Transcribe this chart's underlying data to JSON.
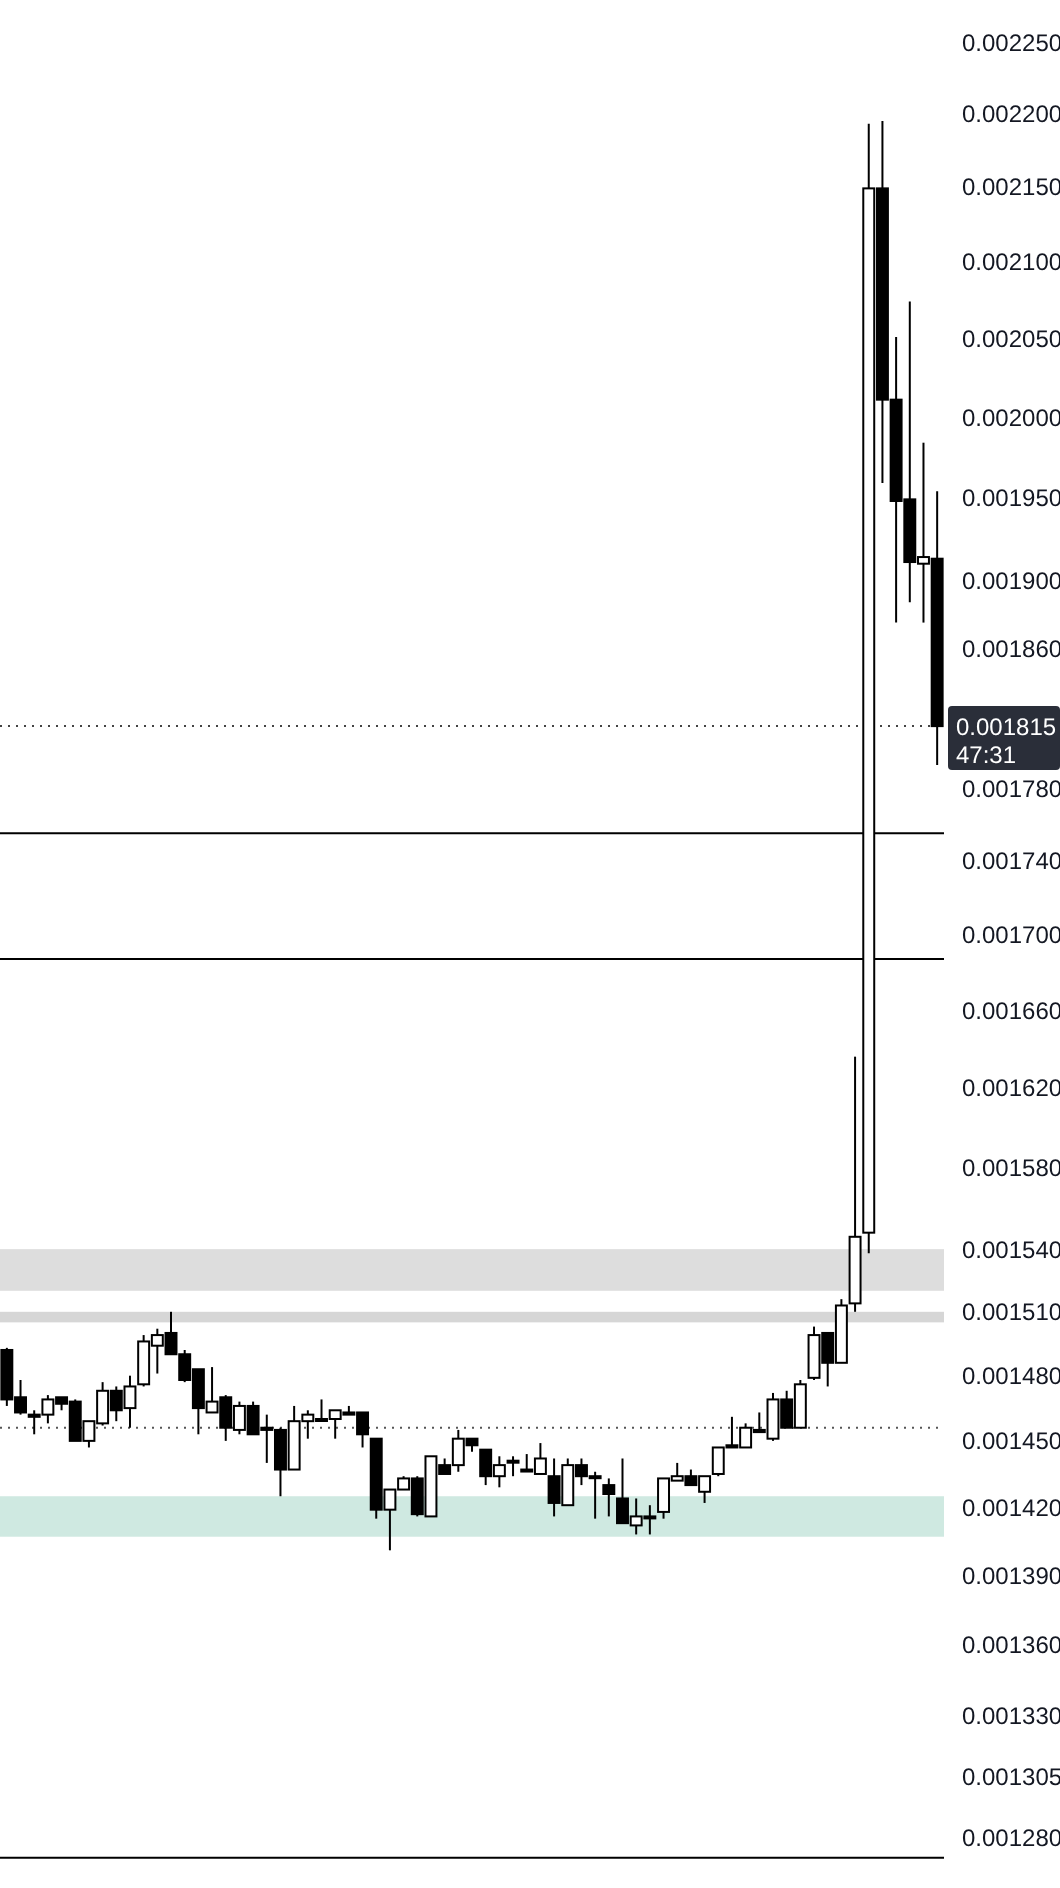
{
  "chart_data": {
    "type": "candlestick",
    "log": "y",
    "tick_labels": "y",
    "categories": [
      null,
      null,
      null,
      null,
      null,
      null,
      null,
      null,
      null,
      null,
      null,
      null,
      null,
      null,
      null,
      null,
      null,
      null,
      null,
      null,
      null,
      null,
      null,
      null,
      null,
      null,
      null,
      null,
      null,
      null,
      null,
      null,
      null,
      null,
      null,
      null,
      null,
      null,
      null,
      null,
      null,
      null,
      null,
      null,
      null,
      null,
      null,
      null,
      null,
      null,
      null,
      null,
      null,
      null,
      null,
      null,
      null,
      null,
      null,
      null,
      null,
      null,
      null,
      null,
      null,
      null,
      null,
      null,
      null
    ],
    "ohlc": [
      [
        0.001492,
        0.001493,
        0.001466,
        0.001469
      ],
      [
        0.00147,
        0.001478,
        0.001462,
        0.001463
      ],
      [
        0.001462,
        0.001464,
        0.001453,
        0.001461
      ],
      [
        0.001462,
        0.001471,
        0.001458,
        0.001469
      ],
      [
        0.00147,
        0.00147,
        0.001464,
        0.001467
      ],
      [
        0.001468,
        0.001469,
        0.00145,
        0.00145
      ],
      [
        0.00145,
        0.001459,
        0.001447,
        0.001459
      ],
      [
        0.001458,
        0.001477,
        0.001457,
        0.001473
      ],
      [
        0.001473,
        0.001475,
        0.001459,
        0.001464
      ],
      [
        0.001465,
        0.00148,
        0.001456,
        0.001475
      ],
      [
        0.001476,
        0.001499,
        0.001475,
        0.001496
      ],
      [
        0.001494,
        0.001502,
        0.001481,
        0.001499
      ],
      [
        0.0015,
        0.00151,
        0.00149,
        0.00149
      ],
      [
        0.00149,
        0.001492,
        0.001477,
        0.001478
      ],
      [
        0.001483,
        0.001483,
        0.001453,
        0.001465
      ],
      [
        0.001463,
        0.001484,
        0.001463,
        0.001468
      ],
      [
        0.00147,
        0.001471,
        0.00145,
        0.001456
      ],
      [
        0.001455,
        0.001468,
        0.001453,
        0.001466
      ],
      [
        0.001466,
        0.001468,
        0.001453,
        0.001453
      ],
      [
        0.001456,
        0.001462,
        0.00144,
        0.001455
      ],
      [
        0.001455,
        0.001456,
        0.001425,
        0.001437
      ],
      [
        0.001437,
        0.001466,
        0.001437,
        0.001459
      ],
      [
        0.001459,
        0.001464,
        0.001451,
        0.001462
      ],
      [
        0.00146,
        0.001469,
        0.001459,
        0.00146
      ],
      [
        0.00146,
        0.001464,
        0.001451,
        0.001464
      ],
      [
        0.001463,
        0.001466,
        0.001462,
        0.001462
      ],
      [
        0.001463,
        0.001463,
        0.001447,
        0.001453
      ],
      [
        0.001451,
        0.001451,
        0.001415,
        0.001419
      ],
      [
        0.001419,
        0.001428,
        0.001401,
        0.001428
      ],
      [
        0.001428,
        0.001434,
        0.001428,
        0.001433
      ],
      [
        0.001433,
        0.001434,
        0.001416,
        0.001417
      ],
      [
        0.001416,
        0.001443,
        0.001416,
        0.001443
      ],
      [
        0.001439,
        0.001442,
        0.001435,
        0.001435
      ],
      [
        0.001439,
        0.001455,
        0.001436,
        0.001451
      ],
      [
        0.001451,
        0.001451,
        0.001445,
        0.001448
      ],
      [
        0.001446,
        0.001446,
        0.00143,
        0.001434
      ],
      [
        0.001434,
        0.001443,
        0.001429,
        0.001439
      ],
      [
        0.001441,
        0.001443,
        0.001434,
        0.001441
      ],
      [
        0.001437,
        0.001444,
        0.001436,
        0.001437
      ],
      [
        0.001435,
        0.001449,
        0.001435,
        0.001442
      ],
      [
        0.001434,
        0.001442,
        0.001416,
        0.001422
      ],
      [
        0.001421,
        0.001442,
        0.001421,
        0.001439
      ],
      [
        0.001439,
        0.001442,
        0.00143,
        0.001434
      ],
      [
        0.001434,
        0.001436,
        0.001415,
        0.001434
      ],
      [
        0.00143,
        0.001433,
        0.001416,
        0.001426
      ],
      [
        0.001424,
        0.001442,
        0.001413,
        0.001413
      ],
      [
        0.001412,
        0.001424,
        0.001408,
        0.001416
      ],
      [
        0.001416,
        0.001421,
        0.001408,
        0.001416
      ],
      [
        0.001418,
        0.001433,
        0.001415,
        0.001433
      ],
      [
        0.001432,
        0.00144,
        0.001432,
        0.001434
      ],
      [
        0.001434,
        0.001437,
        0.00143,
        0.00143
      ],
      [
        0.001427,
        0.001434,
        0.001422,
        0.001434
      ],
      [
        0.001435,
        0.001447,
        0.001434,
        0.001447
      ],
      [
        0.001448,
        0.001461,
        0.001447,
        0.001447
      ],
      [
        0.001447,
        0.001458,
        0.001447,
        0.001456
      ],
      [
        0.001455,
        0.001463,
        0.001454,
        0.001454
      ],
      [
        0.001451,
        0.001472,
        0.00145,
        0.001469
      ],
      [
        0.001469,
        0.001473,
        0.001456,
        0.001456
      ],
      [
        0.001456,
        0.001478,
        0.001456,
        0.001476
      ],
      [
        0.001479,
        0.001503,
        0.001478,
        0.001499
      ],
      [
        0.0015,
        0.0015,
        0.001475,
        0.001486
      ],
      [
        0.001486,
        0.001516,
        0.001486,
        0.001513
      ],
      [
        0.001514,
        0.001636,
        0.00151,
        0.001546
      ],
      [
        0.001548,
        0.002193,
        0.001538,
        0.002149
      ],
      [
        0.002149,
        0.002195,
        0.001959,
        0.002011
      ],
      [
        0.002011,
        0.002051,
        0.001875,
        0.001948
      ],
      [
        0.001949,
        0.002074,
        0.001887,
        0.001911
      ],
      [
        0.00191,
        0.001984,
        0.001875,
        0.001914
      ],
      [
        0.001913,
        0.001954,
        0.001793,
        0.001815
      ]
    ],
    "ylim": [
      0.00126,
      0.00228
    ],
    "yticks": [
      {
        "value": 0.00225,
        "label": "0.002250"
      },
      {
        "value": 0.0022,
        "label": "0.002200"
      },
      {
        "value": 0.00215,
        "label": "0.002150"
      },
      {
        "value": 0.0021,
        "label": "0.002100"
      },
      {
        "value": 0.00205,
        "label": "0.002050"
      },
      {
        "value": 0.002,
        "label": "0.002000"
      },
      {
        "value": 0.00195,
        "label": "0.001950"
      },
      {
        "value": 0.0019,
        "label": "0.001900"
      },
      {
        "value": 0.00186,
        "label": "0.001860"
      },
      {
        "value": 0.00178,
        "label": "0.001780"
      },
      {
        "value": 0.00174,
        "label": "0.001740"
      },
      {
        "value": 0.0017,
        "label": "0.001700"
      },
      {
        "value": 0.00166,
        "label": "0.001660"
      },
      {
        "value": 0.00162,
        "label": "0.001620"
      },
      {
        "value": 0.00158,
        "label": "0.001580"
      },
      {
        "value": 0.00154,
        "label": "0.001540"
      },
      {
        "value": 0.00151,
        "label": "0.001510"
      },
      {
        "value": 0.00148,
        "label": "0.001480"
      },
      {
        "value": 0.00145,
        "label": "0.001450"
      },
      {
        "value": 0.00142,
        "label": "0.001420"
      },
      {
        "value": 0.00139,
        "label": "0.001390"
      },
      {
        "value": 0.00136,
        "label": "0.001360"
      },
      {
        "value": 0.00133,
        "label": "0.001330"
      },
      {
        "value": 0.001305,
        "label": "0.001305"
      },
      {
        "value": 0.00128,
        "label": "0.001280"
      }
    ],
    "ref_lines": [
      {
        "axis": "y",
        "value": 0.001755,
        "color": "#000000",
        "line_style": "solid"
      },
      {
        "axis": "y",
        "value": 0.001687,
        "color": "#000000",
        "line_style": "solid"
      },
      {
        "axis": "y",
        "value": 0.001456,
        "color": "#555555",
        "line_style": "dotted"
      },
      {
        "axis": "y",
        "value": 0.001272,
        "color": "#000000",
        "line_style": "solid"
      },
      {
        "axis": "y",
        "value": 0.001815,
        "color": "#444444",
        "line_style": "dotted",
        "label": "0.001815"
      }
    ],
    "bands": [
      {
        "axis": "y",
        "from": 0.001407,
        "to": 0.001425,
        "color": "#cfe9e1"
      },
      {
        "axis": "y",
        "from": 0.00152,
        "to": 0.00154,
        "color": "#dddddd"
      },
      {
        "axis": "y",
        "from": 0.001505,
        "to": 0.00151,
        "color": "#d6d6d6"
      }
    ],
    "annotations": [
      "47:31"
    ]
  }
}
